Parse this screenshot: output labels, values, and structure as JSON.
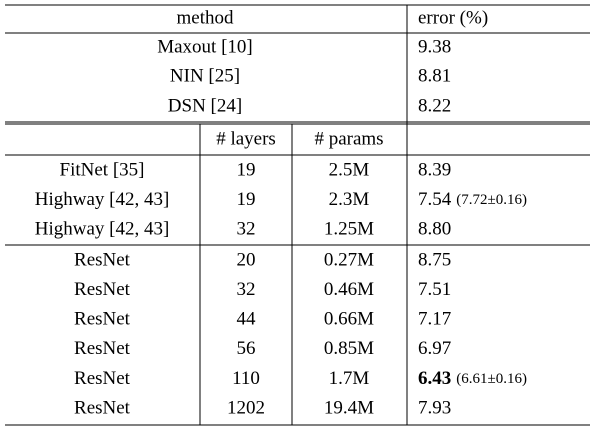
{
  "header": {
    "method": "method",
    "error": "error (%)"
  },
  "baselines": [
    {
      "method": "Maxout [10]",
      "error": "9.38"
    },
    {
      "method": "NIN [25]",
      "error": "8.81"
    },
    {
      "method": "DSN [24]",
      "error": "8.22"
    }
  ],
  "subheader": {
    "layers": "# layers",
    "params": "# params"
  },
  "groups": [
    [
      {
        "method": "FitNet [35]",
        "layers": "19",
        "params": "2.5M",
        "error": "8.39"
      },
      {
        "method": "Highway [42, 43]",
        "layers": "19",
        "params": "2.3M",
        "error": "7.54",
        "note": "(7.72±0.16)"
      },
      {
        "method": "Highway [42, 43]",
        "layers": "32",
        "params": "1.25M",
        "error": "8.80"
      }
    ],
    [
      {
        "method": "ResNet",
        "layers": "20",
        "params": "0.27M",
        "error": "8.75"
      },
      {
        "method": "ResNet",
        "layers": "32",
        "params": "0.46M",
        "error": "7.51"
      },
      {
        "method": "ResNet",
        "layers": "44",
        "params": "0.66M",
        "error": "7.17"
      },
      {
        "method": "ResNet",
        "layers": "56",
        "params": "0.85M",
        "error": "6.97"
      },
      {
        "method": "ResNet",
        "layers": "110",
        "params": "1.7M",
        "error": "6.43",
        "note": "(6.61±0.16)",
        "bold": true
      },
      {
        "method": "ResNet",
        "layers": "1202",
        "params": "19.4M",
        "error": "7.93"
      }
    ]
  ]
}
